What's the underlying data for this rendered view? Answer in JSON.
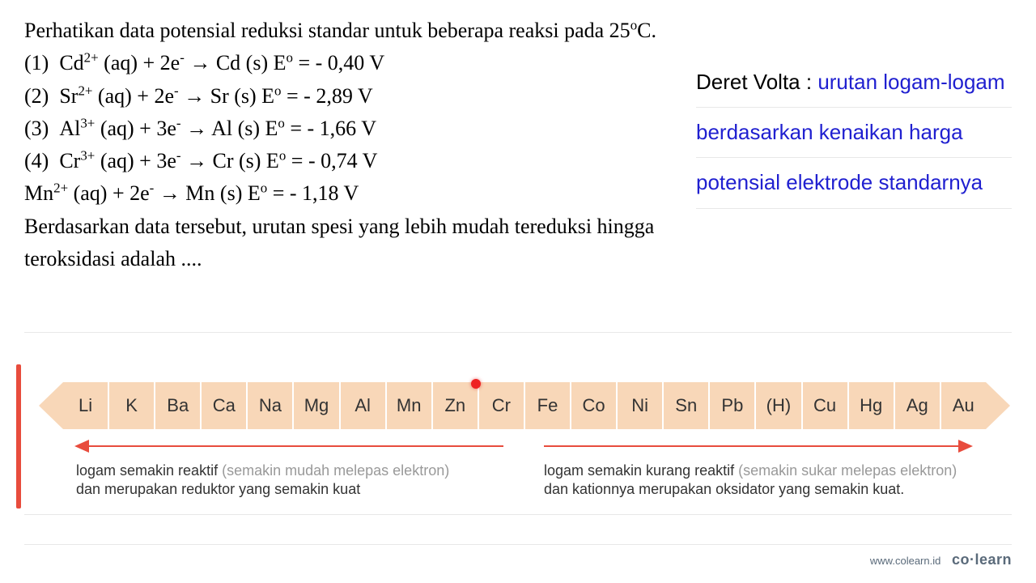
{
  "question": {
    "intro": "Perhatikan data potensial reduksi standar untuk beberapa reaksi pada 25",
    "intro_unit": "C.",
    "equations": [
      {
        "n": "(1)",
        "ion": "Cd",
        "charge": "2+",
        "electrons": "2e",
        "product": "Cd (s)",
        "E": "- 0,40 V"
      },
      {
        "n": "(2)",
        "ion": "Sr",
        "charge": "2+",
        "electrons": "2e",
        "product": "Sr (s)",
        "E": "- 2,89 V"
      },
      {
        "n": "(3)",
        "ion": "Al",
        "charge": "3+",
        "electrons": "3e",
        "product": "Al (s)",
        "E": "- 1,66 V"
      },
      {
        "n": "(4)",
        "ion": "Cr",
        "charge": "3+",
        "electrons": "3e",
        "product": "Cr (s)",
        "E": "- 0,74 V"
      }
    ],
    "extra_eq": {
      "ion": "Mn",
      "charge": "2+",
      "electrons": "2e",
      "product": "Mn (s)",
      "E": "- 1,18 V"
    },
    "tail": "Berdasarkan data tersebut, urutan spesi yang lebih mudah tereduksi hingga teroksidasi adalah ...."
  },
  "definition": {
    "label": "Deret Volta : ",
    "line1": "urutan logam-logam",
    "line2": "berdasarkan kenaikan harga",
    "line3": "potensial elektrode standarnya"
  },
  "volta_series": {
    "elements": [
      "Li",
      "K",
      "Ba",
      "Ca",
      "Na",
      "Mg",
      "Al",
      "Mn",
      "Zn",
      "Cr",
      "Fe",
      "Co",
      "Ni",
      "Sn",
      "Pb",
      "(H)",
      "Cu",
      "Hg",
      "Ag",
      "Au"
    ],
    "bar_color": "#f8d7b8",
    "accent_color": "#e84c3d",
    "red_dot_color": "#e22",
    "element_font_size": 22
  },
  "captions": {
    "left_a": "logam semakin reaktif ",
    "left_muted": "(semakin mudah melepas elektron)",
    "left_b": "dan merupakan reduktor yang semakin kuat",
    "right_a": "logam semakin kurang reaktif ",
    "right_muted": "(semakin sukar melepas elektron)",
    "right_b": "dan kationnya merupakan oksidator yang semakin kuat."
  },
  "footer": {
    "url": "www.colearn.id",
    "brand": "co·learn"
  },
  "colors": {
    "text": "#000000",
    "definition_blue": "#2020d0",
    "muted_gray": "#999999",
    "rule": "#e8e8e8",
    "background": "#ffffff"
  }
}
